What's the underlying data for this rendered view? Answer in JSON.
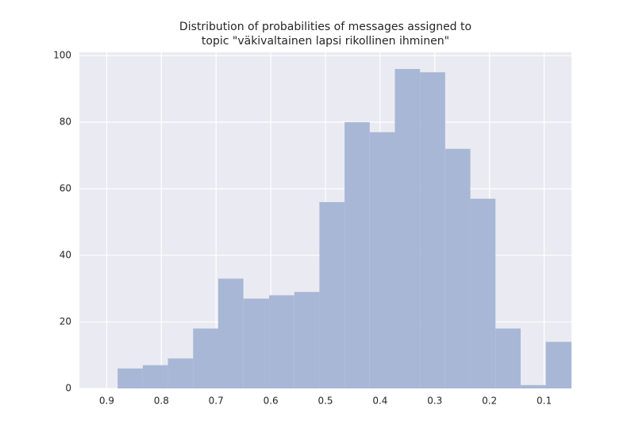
{
  "chart_data": {
    "type": "histogram",
    "title": [
      "Distribution of probabilities of messages assigned to",
      "topic \"väkivaltainen lapsi rikollinen ihminen\""
    ],
    "bins": [
      0.88,
      0.834,
      0.788,
      0.742,
      0.696,
      0.65,
      0.603,
      0.557,
      0.511,
      0.465,
      0.419,
      0.373,
      0.327,
      0.281,
      0.235,
      0.189,
      0.143,
      0.097,
      0.05
    ],
    "values": [
      6,
      7,
      9,
      18,
      33,
      27,
      28,
      29,
      56,
      80,
      77,
      96,
      95,
      72,
      57,
      18,
      1,
      14
    ],
    "color": "#a9b7d6",
    "xlim": [
      0.95,
      0.05
    ],
    "xticks": [
      0.9,
      0.8,
      0.7,
      0.6,
      0.5,
      0.4,
      0.3,
      0.2,
      0.1
    ],
    "ylim": [
      0,
      101
    ],
    "yticks": [
      0,
      20,
      40,
      60,
      80,
      100
    ],
    "grid": true
  }
}
